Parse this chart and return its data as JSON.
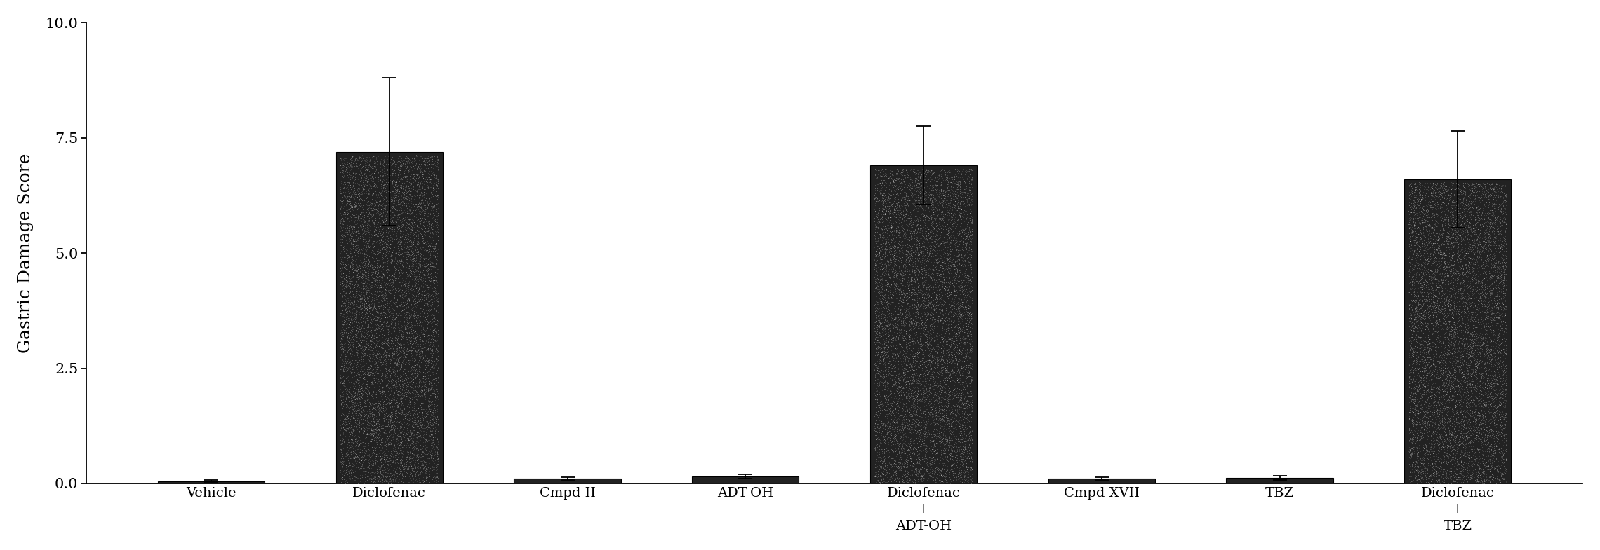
{
  "categories": [
    "Vehicle",
    "Diclofenac",
    "Cmpd II",
    "ADT-OH",
    "Diclofenac\n+\nADT-OH",
    "Cmpd XVII",
    "TBZ",
    "Diclofenac\n+\nTBZ"
  ],
  "values": [
    0.05,
    7.2,
    0.1,
    0.15,
    6.9,
    0.1,
    0.12,
    6.6
  ],
  "errors": [
    0.03,
    1.6,
    0.03,
    0.04,
    0.85,
    0.03,
    0.04,
    1.05
  ],
  "bar_color": "#222222",
  "bar_width": 0.6,
  "ylabel": "Gastric Damage Score",
  "ylim": [
    0.0,
    10.0
  ],
  "yticks": [
    0.0,
    2.5,
    5.0,
    7.5,
    10.0
  ],
  "background_color": "#ffffff",
  "ylabel_fontsize": 18,
  "tick_fontsize": 15,
  "xlabel_fontsize": 14,
  "figsize": [
    22.8,
    7.85
  ],
  "dpi": 100
}
